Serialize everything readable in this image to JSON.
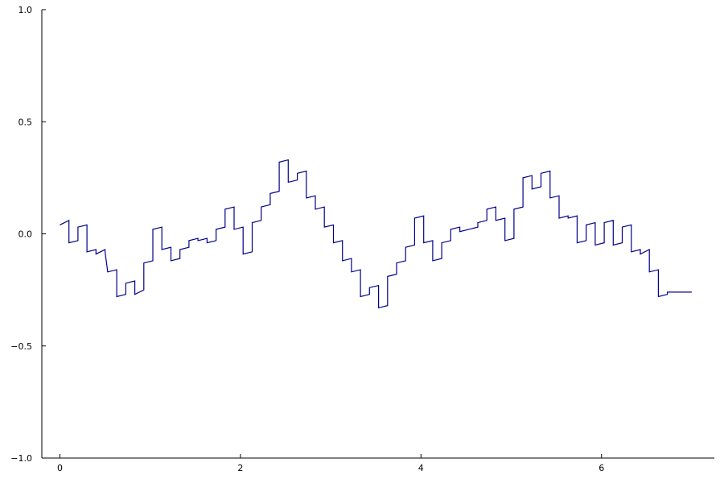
{
  "chart_data": {
    "type": "line",
    "title": "",
    "xlabel": "",
    "ylabel": "",
    "xlim": [
      -0.2,
      7.25
    ],
    "ylim": [
      -1.0,
      1.0
    ],
    "grid": false,
    "x_ticks": [
      0,
      2,
      4,
      6
    ],
    "x_tick_labels": [
      "0",
      "2",
      "4",
      "6"
    ],
    "y_ticks": [
      -1.0,
      -0.5,
      0.0,
      0.5,
      1.0
    ],
    "y_tick_labels": [
      "−1.0",
      "−0.5",
      "0.0",
      "0.5",
      "1.0"
    ],
    "series": [
      {
        "color": "#00008b",
        "x": [
          0.0,
          0.1,
          0.1,
          0.2,
          0.2,
          0.3,
          0.3,
          0.4,
          0.4,
          0.5,
          0.5,
          0.53,
          0.53,
          0.63,
          0.63,
          0.73,
          0.73,
          0.83,
          0.83,
          0.93,
          0.93,
          1.03,
          1.03,
          1.13,
          1.13,
          1.23,
          1.23,
          1.33,
          1.33,
          1.43,
          1.43,
          1.53,
          1.53,
          1.63,
          1.63,
          1.73,
          1.73,
          1.83,
          1.83,
          1.93,
          1.93,
          2.03,
          2.03,
          2.13,
          2.13,
          2.23,
          2.23,
          2.33,
          2.33,
          2.43,
          2.43,
          2.53,
          2.53,
          2.63,
          2.63,
          2.73,
          2.73,
          2.83,
          2.83,
          2.93,
          2.93,
          3.03,
          3.03,
          3.13,
          3.13,
          3.23,
          3.23,
          3.33,
          3.33,
          3.43,
          3.43,
          3.53,
          3.53,
          3.63,
          3.63,
          3.73,
          3.73,
          3.83,
          3.83,
          3.93,
          3.93,
          4.03,
          4.03,
          4.13,
          4.13,
          4.23,
          4.23,
          4.33,
          4.33,
          4.43,
          4.43,
          4.53,
          4.53,
          4.63,
          4.63,
          4.73,
          4.73,
          4.83,
          4.83,
          4.93,
          4.93,
          5.03,
          5.03,
          5.13,
          5.13,
          5.23,
          5.23,
          5.33,
          5.33,
          5.43,
          5.43,
          5.53,
          5.53,
          5.63,
          5.63,
          5.73,
          5.73,
          5.83,
          5.83,
          5.93,
          5.93,
          6.03,
          6.03,
          6.13,
          6.13,
          6.23,
          6.23,
          6.33,
          6.33,
          6.43,
          6.43,
          6.53,
          6.53,
          6.63,
          6.63,
          6.73,
          6.73,
          6.83,
          6.83,
          6.93,
          6.93,
          7.0
        ],
        "y": [
          0.04,
          0.06,
          -0.04,
          -0.03,
          0.03,
          0.04,
          -0.08,
          -0.07,
          -0.09,
          -0.07,
          -0.08,
          -0.17,
          -0.17,
          -0.16,
          -0.28,
          -0.27,
          -0.22,
          -0.21,
          -0.27,
          -0.25,
          -0.13,
          -0.12,
          0.02,
          0.03,
          -0.07,
          -0.06,
          -0.12,
          -0.11,
          -0.07,
          -0.06,
          -0.03,
          -0.02,
          -0.03,
          -0.02,
          -0.04,
          -0.03,
          0.02,
          0.03,
          0.11,
          0.12,
          0.02,
          0.03,
          -0.09,
          -0.08,
          0.05,
          0.06,
          0.12,
          0.13,
          0.18,
          0.19,
          0.32,
          0.33,
          0.23,
          0.24,
          0.27,
          0.28,
          0.16,
          0.17,
          0.11,
          0.12,
          0.03,
          0.04,
          -0.04,
          -0.03,
          -0.12,
          -0.11,
          -0.17,
          -0.16,
          -0.28,
          -0.27,
          -0.24,
          -0.23,
          -0.33,
          -0.32,
          -0.19,
          -0.18,
          -0.13,
          -0.12,
          -0.06,
          -0.05,
          0.07,
          0.08,
          -0.04,
          -0.03,
          -0.12,
          -0.11,
          -0.04,
          -0.03,
          0.02,
          0.03,
          0.01,
          0.02,
          0.02,
          0.03,
          0.05,
          0.06,
          0.11,
          0.12,
          0.06,
          0.07,
          -0.03,
          -0.02,
          0.11,
          0.12,
          0.25,
          0.26,
          0.2,
          0.21,
          0.27,
          0.28,
          0.16,
          0.17,
          0.07,
          0.08,
          0.07,
          0.08,
          -0.04,
          -0.03,
          0.04,
          0.05,
          -0.05,
          -0.04,
          0.05,
          0.06,
          -0.05,
          -0.04,
          0.03,
          0.04,
          -0.08,
          -0.07,
          -0.09,
          -0.07,
          -0.17,
          -0.16,
          -0.28,
          -0.27,
          -0.26,
          -0.26,
          -0.26,
          -0.26,
          -0.26,
          -0.26
        ]
      }
    ]
  }
}
